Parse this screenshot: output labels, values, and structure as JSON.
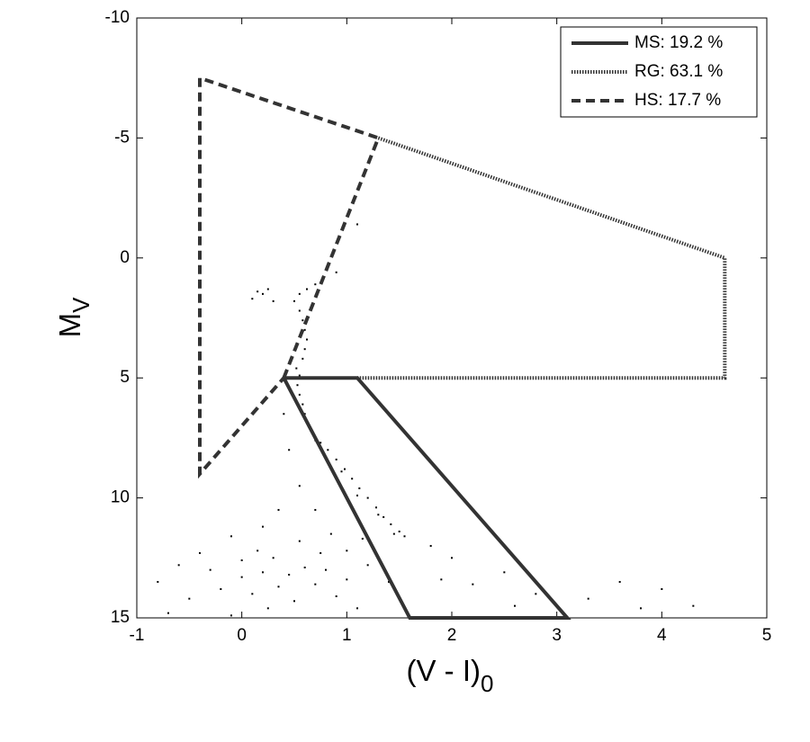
{
  "chart_data": {
    "type": "line",
    "xlabel": "(V - I)",
    "xlabel_sub": "0",
    "ylabel": "M",
    "ylabel_sub": "V",
    "xlim": [
      -1,
      5
    ],
    "ylim": [
      15,
      -10
    ],
    "xticks": [
      -1,
      0,
      1,
      2,
      3,
      4,
      5
    ],
    "yticks": [
      15,
      10,
      5,
      0,
      -5,
      -10
    ],
    "legend": "upper right",
    "series": [
      {
        "name": "MS: 19.2 %",
        "color": "#333333",
        "linestyle": "solid",
        "x": [
          0.4,
          1.1,
          3.1,
          1.6,
          0.4
        ],
        "values": [
          5,
          5,
          15,
          15,
          5
        ]
      },
      {
        "name": "RG: 63.1 %",
        "color": "#333333",
        "linestyle": "dotted",
        "x": [
          1.3,
          4.6,
          4.6,
          1.1
        ],
        "values": [
          -5,
          0,
          5,
          5
        ]
      },
      {
        "name": "HS: 17.7 %",
        "color": "#333333",
        "linestyle": "dashed",
        "x": [
          0.4,
          1.3,
          -0.4,
          -0.4,
          0.4
        ],
        "values": [
          5,
          -5,
          -7.5,
          9,
          5
        ]
      }
    ],
    "points": {
      "color": "#000000",
      "x": [
        0.52,
        0.55,
        0.53,
        0.55,
        0.58,
        0.6,
        0.63,
        0.68,
        0.75,
        0.82,
        0.9,
        0.98,
        1.05,
        1.12,
        1.2,
        1.28,
        1.35,
        1.42,
        1.5,
        1.55,
        0.7,
        0.95,
        1.1,
        1.3,
        1.45,
        0.58,
        0.6,
        0.62,
        0.6,
        0.58,
        0.55,
        0.55,
        0.62,
        0.5,
        0.1,
        0.2,
        0.25,
        0.3,
        0.15,
        1.1,
        0.9,
        0.7,
        0.4,
        0.45,
        0.55,
        0.7,
        0.85,
        1.0,
        1.2,
        1.4,
        1.8,
        2.0,
        1.9,
        2.2,
        2.5,
        2.8,
        3.3,
        3.6,
        4.0,
        4.3,
        3.8,
        2.6,
        -0.8,
        -0.6,
        -0.5,
        -0.3,
        -0.2,
        0.0,
        0.0,
        0.1,
        0.2,
        0.3,
        0.35,
        0.45,
        0.5,
        0.6,
        0.7,
        0.8,
        0.9,
        1.0,
        1.1,
        -0.7,
        -0.1,
        0.25,
        -0.4,
        0.15,
        0.55,
        0.35,
        0.2,
        -0.1,
        0.75,
        1.15
      ],
      "y": [
        4.6,
        4.9,
        5.3,
        5.7,
        6.1,
        6.5,
        6.9,
        7.3,
        7.7,
        8.0,
        8.4,
        8.8,
        9.2,
        9.6,
        10.0,
        10.4,
        10.8,
        11.1,
        11.4,
        11.6,
        7.6,
        8.9,
        9.9,
        10.7,
        11.5,
        4.2,
        3.8,
        3.4,
        3.0,
        2.6,
        2.2,
        1.5,
        1.3,
        1.8,
        1.7,
        1.5,
        1.3,
        1.8,
        1.4,
        -1.4,
        0.6,
        1.1,
        6.5,
        8,
        9.5,
        10.5,
        11.5,
        12.2,
        12.8,
        13.5,
        12,
        12.5,
        13.4,
        13.6,
        13.1,
        14.0,
        14.2,
        13.5,
        13.8,
        14.5,
        14.6,
        14.5,
        13.5,
        12.8,
        14.2,
        13.0,
        13.8,
        12.6,
        13.3,
        14.0,
        13.1,
        12.5,
        13.7,
        13.2,
        14.3,
        12.9,
        13.6,
        13.0,
        14.1,
        13.4,
        14.6,
        14.8,
        14.9,
        14.6,
        12.3,
        12.2,
        11.8,
        10.5,
        11.2,
        11.6,
        12.3,
        11.7
      ]
    }
  }
}
